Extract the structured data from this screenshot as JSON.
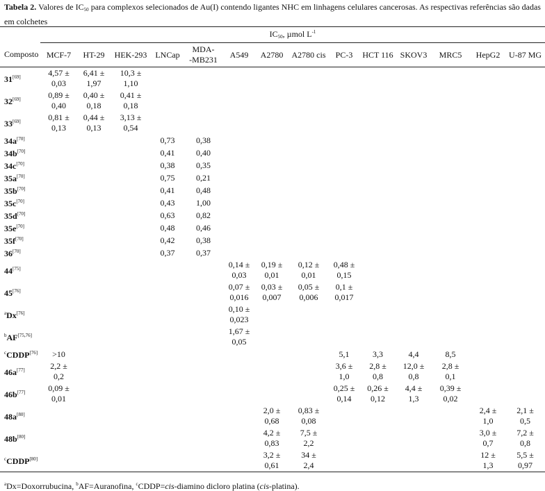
{
  "caption": {
    "label": "Tabela 2.",
    "text_before": " Valores de IC",
    "subscript": "50",
    "text_after": " para complexos selecionados de Au(I) contendo ligantes NHC em linhagens celulares cancerosas. As respectivas referências são dadas em colchetes"
  },
  "table": {
    "group_header": {
      "text": "IC",
      "subscript": "50",
      "text_after": ", µmol L",
      "superscript": "-1"
    },
    "columns": [
      [
        "Composto"
      ],
      [
        "MCF-7"
      ],
      [
        "HT-29"
      ],
      [
        "HEK-293"
      ],
      [
        "LNCap"
      ],
      [
        "MDA-",
        "-MB231"
      ],
      [
        "A549"
      ],
      [
        "A2780"
      ],
      [
        "A2780 cis"
      ],
      [
        "PC-3"
      ],
      [
        "HCT 116"
      ],
      [
        "SKOV3"
      ],
      [
        "MRC5"
      ],
      [
        "HepG2"
      ],
      [
        "U-87 MG"
      ]
    ],
    "rows": [
      {
        "name": "31",
        "ref": "[69]",
        "cells": [
          [
            "4,57 ±",
            "0,03"
          ],
          [
            "6,41 ±",
            "1,97"
          ],
          [
            "10,3 ±",
            "1,10"
          ],
          null,
          null,
          null,
          null,
          null,
          null,
          null,
          null,
          null,
          null,
          null
        ]
      },
      {
        "name": "32",
        "ref": "[69]",
        "cells": [
          [
            "0,89 ±",
            "0,40"
          ],
          [
            "0,40 ±",
            "0,18"
          ],
          [
            "0,41 ±",
            "0,18"
          ],
          null,
          null,
          null,
          null,
          null,
          null,
          null,
          null,
          null,
          null,
          null
        ]
      },
      {
        "name": "33",
        "ref": "[69]",
        "cells": [
          [
            "0,81 ±",
            "0,13"
          ],
          [
            "0,44 ±",
            "0,13"
          ],
          [
            "3,13 ±",
            "0,54"
          ],
          null,
          null,
          null,
          null,
          null,
          null,
          null,
          null,
          null,
          null,
          null
        ]
      },
      {
        "name": "34a",
        "ref": "[70]",
        "cells": [
          null,
          null,
          null,
          [
            "0,73"
          ],
          [
            "0,38"
          ],
          null,
          null,
          null,
          null,
          null,
          null,
          null,
          null,
          null
        ]
      },
      {
        "name": "34b",
        "ref": "[70]",
        "cells": [
          null,
          null,
          null,
          [
            "0,41"
          ],
          [
            "0,40"
          ],
          null,
          null,
          null,
          null,
          null,
          null,
          null,
          null,
          null
        ]
      },
      {
        "name": "34c",
        "ref": "[70]",
        "cells": [
          null,
          null,
          null,
          [
            "0,38"
          ],
          [
            "0,35"
          ],
          null,
          null,
          null,
          null,
          null,
          null,
          null,
          null,
          null
        ]
      },
      {
        "name": "35a",
        "ref": "[70]",
        "cells": [
          null,
          null,
          null,
          [
            "0,75"
          ],
          [
            "0,21"
          ],
          null,
          null,
          null,
          null,
          null,
          null,
          null,
          null,
          null
        ]
      },
      {
        "name": "35b",
        "ref": "[70]",
        "cells": [
          null,
          null,
          null,
          [
            "0,41"
          ],
          [
            "0,48"
          ],
          null,
          null,
          null,
          null,
          null,
          null,
          null,
          null,
          null
        ]
      },
      {
        "name": "35c",
        "ref": "[70]",
        "cells": [
          null,
          null,
          null,
          [
            "0,43"
          ],
          [
            "1,00"
          ],
          null,
          null,
          null,
          null,
          null,
          null,
          null,
          null,
          null
        ]
      },
      {
        "name": "35d",
        "ref": "[70]",
        "cells": [
          null,
          null,
          null,
          [
            "0,63"
          ],
          [
            "0,82"
          ],
          null,
          null,
          null,
          null,
          null,
          null,
          null,
          null,
          null
        ]
      },
      {
        "name": "35e",
        "ref": "[70]",
        "cells": [
          null,
          null,
          null,
          [
            "0,48"
          ],
          [
            "0,46"
          ],
          null,
          null,
          null,
          null,
          null,
          null,
          null,
          null,
          null
        ]
      },
      {
        "name": "35f",
        "ref": "[70]",
        "cells": [
          null,
          null,
          null,
          [
            "0,42"
          ],
          [
            "0,38"
          ],
          null,
          null,
          null,
          null,
          null,
          null,
          null,
          null,
          null
        ]
      },
      {
        "name": "36",
        "ref": "[70]",
        "cells": [
          null,
          null,
          null,
          [
            "0,37"
          ],
          [
            "0,37"
          ],
          null,
          null,
          null,
          null,
          null,
          null,
          null,
          null,
          null
        ]
      },
      {
        "name": "44",
        "ref": "[75]",
        "cells": [
          null,
          null,
          null,
          null,
          null,
          [
            "0,14 ±",
            "0,03"
          ],
          [
            "0,19 ±",
            "0,01"
          ],
          [
            "0,12 ±",
            "0,01"
          ],
          [
            "0,48 ±",
            "0,15"
          ],
          null,
          null,
          null,
          null,
          null
        ]
      },
      {
        "name": "45",
        "ref": "[76]",
        "cells": [
          null,
          null,
          null,
          null,
          null,
          [
            "0,07 ±",
            "0,016"
          ],
          [
            "0,03 ±",
            "0,007"
          ],
          [
            "0,05 ±",
            "0,006"
          ],
          [
            "0,1 ±",
            "0,017"
          ],
          null,
          null,
          null,
          null,
          null
        ]
      },
      {
        "prefix": "a",
        "name": "Dx",
        "ref": "[76]",
        "cells": [
          null,
          null,
          null,
          null,
          null,
          [
            "0,10 ±",
            "0,023"
          ],
          null,
          null,
          null,
          null,
          null,
          null,
          null,
          null
        ]
      },
      {
        "prefix": "b",
        "name": "AF",
        "ref": "[75,76]",
        "cells": [
          null,
          null,
          null,
          null,
          null,
          [
            "1,67 ±",
            "0,05"
          ],
          null,
          null,
          null,
          null,
          null,
          null,
          null,
          null
        ]
      },
      {
        "prefix": "c",
        "name": "CDDP",
        "ref": "[76]",
        "cells": [
          [
            ">10"
          ],
          null,
          null,
          null,
          null,
          null,
          null,
          null,
          [
            "5,1"
          ],
          [
            "3,3"
          ],
          [
            "4,4"
          ],
          [
            "8,5"
          ],
          null,
          null
        ]
      },
      {
        "name": "46a",
        "ref": "[77]",
        "cells": [
          [
            "2,2 ±",
            "0,2"
          ],
          null,
          null,
          null,
          null,
          null,
          null,
          null,
          [
            "3,6 ±",
            "1,0"
          ],
          [
            "2,8 ±",
            "0,8"
          ],
          [
            "12,0 ±",
            "0,8"
          ],
          [
            "2,8 ±",
            "0,1"
          ],
          null,
          null
        ]
      },
      {
        "name": "46b",
        "ref": "[77]",
        "cells": [
          [
            "0,09 ±",
            "0,01"
          ],
          null,
          null,
          null,
          null,
          null,
          null,
          null,
          [
            "0,25 ±",
            "0,14"
          ],
          [
            "0,26 ±",
            "0,12"
          ],
          [
            "4,4 ±",
            "1,3"
          ],
          [
            "0,39 ±",
            "0,02"
          ],
          null,
          null
        ]
      },
      {
        "name": "48a",
        "ref": "[80]",
        "cells": [
          null,
          null,
          null,
          null,
          null,
          null,
          [
            "2,0 ±",
            "0,68"
          ],
          [
            "0,83 ±",
            "0,08"
          ],
          null,
          null,
          null,
          null,
          [
            "2,4 ±",
            "1,0"
          ],
          [
            "2,1 ±",
            "0,5"
          ]
        ]
      },
      {
        "name": "48b",
        "ref": "[80]",
        "cells": [
          null,
          null,
          null,
          null,
          null,
          null,
          [
            "4,2 ±",
            "0,83"
          ],
          [
            "7,5 ±",
            "2,2"
          ],
          null,
          null,
          null,
          null,
          [
            "3,0 ±",
            "0,7"
          ],
          [
            "7,2 ±",
            "0,8"
          ]
        ]
      },
      {
        "prefix": "c",
        "name": "CDDP",
        "ref": "[80]",
        "cells": [
          null,
          null,
          null,
          null,
          null,
          null,
          [
            "3,2 ±",
            "0,61"
          ],
          [
            "34 ±",
            "2,4"
          ],
          null,
          null,
          null,
          null,
          [
            "12 ±",
            "1,3"
          ],
          [
            "5,5 ±",
            "0,97"
          ]
        ]
      }
    ]
  },
  "footnote": [
    "a",
    "Dx=Doxorrubucina, ",
    "b",
    "AF=Auranofina, ",
    "c",
    "CDDP=",
    "cis",
    "-diamino dicloro platina (",
    "cis",
    "-platina)."
  ]
}
